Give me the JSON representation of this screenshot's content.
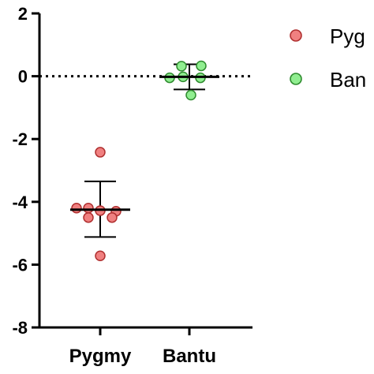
{
  "chart_data": {
    "type": "scatter",
    "categories": [
      "Pygmy",
      "Bantu"
    ],
    "ylim": [
      -8,
      2
    ],
    "yticks": [
      "2",
      "0",
      "-2",
      "-4",
      "-6",
      "-8"
    ],
    "reference_line": 0,
    "series": [
      {
        "name": "Pygmy",
        "color": "#f08080",
        "points": [
          -2.42,
          -4.2,
          -4.2,
          -4.28,
          -4.3,
          -4.5,
          -4.5,
          -5.72
        ],
        "mean": -4.25,
        "sd_upper": -3.35,
        "sd_lower": -5.12
      },
      {
        "name": "Bantu",
        "color": "#90ee90",
        "points": [
          0.32,
          0.33,
          -0.05,
          -0.02,
          -0.05,
          -0.6
        ],
        "mean": -0.02,
        "sd_upper": 0.38,
        "sd_lower": -0.42
      }
    ],
    "legend": {
      "position": "right",
      "entries": [
        "Pyg",
        "Ban"
      ]
    }
  }
}
